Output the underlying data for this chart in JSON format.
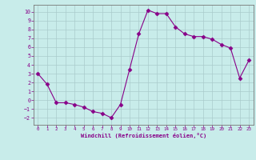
{
  "x": [
    0,
    1,
    2,
    3,
    4,
    5,
    6,
    7,
    8,
    9,
    10,
    11,
    12,
    13,
    14,
    15,
    16,
    17,
    18,
    19,
    20,
    21,
    22,
    23
  ],
  "y": [
    3.0,
    1.8,
    -0.3,
    -0.3,
    -0.5,
    -0.8,
    -1.3,
    -1.5,
    -2.0,
    -0.5,
    3.5,
    7.5,
    10.2,
    9.8,
    9.8,
    8.3,
    7.5,
    7.2,
    7.2,
    6.9,
    6.3,
    5.9,
    2.5,
    4.5
  ],
  "line_color": "#880088",
  "marker": "D",
  "marker_size": 2.5,
  "bg_color": "#c8ecea",
  "grid_color": "#aacccc",
  "xlabel": "Windchill (Refroidissement éolien,°C)",
  "xlabel_color": "#880088",
  "tick_color": "#880088",
  "label_color": "#880088",
  "ylim": [
    -2.8,
    10.8
  ],
  "xlim": [
    -0.5,
    23.5
  ],
  "yticks": [
    -2,
    -1,
    0,
    1,
    2,
    3,
    4,
    5,
    6,
    7,
    8,
    9,
    10
  ],
  "xticks": [
    0,
    1,
    2,
    3,
    4,
    5,
    6,
    7,
    8,
    9,
    10,
    11,
    12,
    13,
    14,
    15,
    16,
    17,
    18,
    19,
    20,
    21,
    22,
    23
  ],
  "spine_color": "#777777"
}
